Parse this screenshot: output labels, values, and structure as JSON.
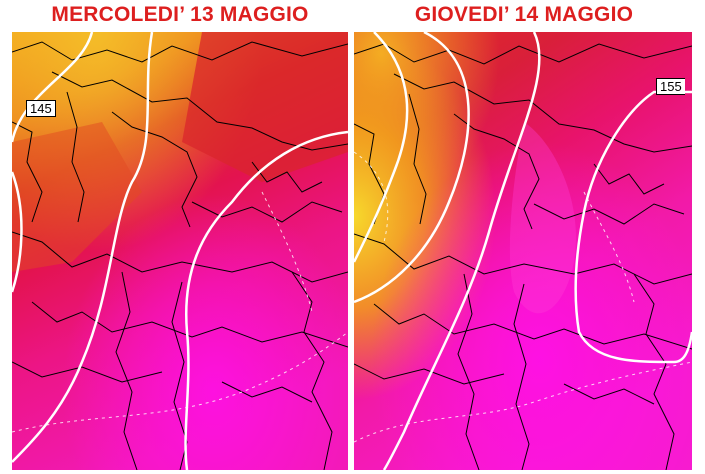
{
  "panels": [
    {
      "title": "MERCOLEDI’ 13 MAGGIO",
      "contour_label": "145"
    },
    {
      "title": "GIOVEDI’ 14 MAGGIO",
      "contour_label": "155"
    }
  ],
  "colors": {
    "title": "#dd1f1f",
    "yellow": "#f2d12a",
    "orange": "#f19a16",
    "red_orange": "#e2461e",
    "red": "#d92137",
    "crimson": "#e0124e",
    "magenta_red": "#ea1373",
    "magenta": "#f01ab7",
    "bright_magenta": "#ff10e6",
    "isoline": "#ffffff",
    "coastline": "#000000"
  }
}
